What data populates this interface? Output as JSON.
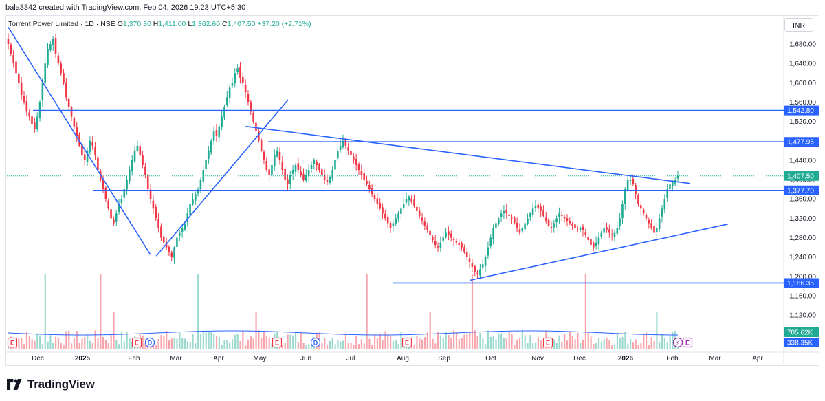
{
  "header": {
    "credit": "bala3342 created with TradingView.com, Feb 04, 2026 19:23 UTC+5:30"
  },
  "legend": {
    "symbol": "Torrent Power Limited · 1D · NSE",
    "open_label": "O",
    "open": "1,370.30",
    "high_label": "H",
    "high": "1,411.00",
    "low_label": "L",
    "low": "1,362.60",
    "close_label": "C",
    "close": "1,407.50",
    "change": "+37.20 (+2.71%)"
  },
  "currency": "INR",
  "footer": {
    "brand": "TradingView"
  },
  "colors": {
    "up": "#22ab94",
    "down": "#f23645",
    "line": "#2962ff",
    "tag_bg": "#2962ff",
    "current_tag": "#22ab94",
    "volume_ma": "#2962ff",
    "earnings": "#f23645",
    "dividend": "#2962ff"
  },
  "chart_data": {
    "type": "candlestick",
    "ylim": [
      1140,
      1720
    ],
    "y_ticks": [
      "1,680.00",
      "1,640.00",
      "1,600.00",
      "1,560.00",
      "1,520.00",
      "1,480.00",
      "1,440.00",
      "1,400.00",
      "1,360.00",
      "1,320.00",
      "1,280.00",
      "1,240.00",
      "1,200.00",
      "1,160.00",
      "1,120.00"
    ],
    "x_ticks": [
      "Dec",
      "2025",
      "Feb",
      "Mar",
      "Apr",
      "May",
      "Jun",
      "Jul",
      "Aug",
      "Sep",
      "Oct",
      "Nov",
      "Dec",
      "2026",
      "Feb",
      "Mar",
      "Apr"
    ],
    "horizontal_levels": [
      1542.8,
      1477.95,
      1377.7,
      1186.35
    ],
    "level_labels": [
      "1,542.80",
      "1,477.95",
      "1,377.70",
      "1,186.35"
    ],
    "current_price": 1407.5,
    "current_price_label": "1,407.50",
    "volume_labels": {
      "volume": "705.62K",
      "volume_ma": "338.35K"
    },
    "trendlines": [
      {
        "name": "falling-trendline",
        "from": [
          "2024-11-20",
          1715
        ],
        "to": [
          "2025-02-25",
          1245
        ]
      },
      {
        "name": "rising-trendline",
        "from": [
          "2025-03-01",
          1242
        ],
        "to": [
          "2025-05-30",
          1565
        ]
      },
      {
        "name": "descending-resistance",
        "from": [
          "2025-05-01",
          1510
        ],
        "to": [
          "2026-02-28",
          1392
        ]
      },
      {
        "name": "ascending-support",
        "from": [
          "2025-10-01",
          1192
        ],
        "to": [
          "2026-03-26",
          1308
        ]
      }
    ],
    "closes": [
      1680,
      1660,
      1640,
      1620,
      1600,
      1575,
      1560,
      1540,
      1530,
      1515,
      1505,
      1530,
      1560,
      1600,
      1640,
      1670,
      1680,
      1690,
      1660,
      1640,
      1620,
      1600,
      1570,
      1550,
      1530,
      1510,
      1490,
      1470,
      1450,
      1440,
      1460,
      1480,
      1470,
      1450,
      1420,
      1400,
      1380,
      1360,
      1340,
      1320,
      1310,
      1330,
      1350,
      1360,
      1380,
      1400,
      1420,
      1440,
      1460,
      1470,
      1450,
      1430,
      1410,
      1380,
      1360,
      1340,
      1320,
      1300,
      1280,
      1270,
      1260,
      1250,
      1240,
      1260,
      1280,
      1290,
      1300,
      1310,
      1330,
      1350,
      1360,
      1370,
      1380,
      1400,
      1420,
      1440,
      1460,
      1480,
      1500,
      1490,
      1510,
      1530,
      1550,
      1570,
      1590,
      1600,
      1620,
      1630,
      1610,
      1600,
      1580,
      1560,
      1540,
      1520,
      1500,
      1480,
      1460,
      1440,
      1420,
      1410,
      1430,
      1450,
      1460,
      1440,
      1420,
      1400,
      1390,
      1410,
      1420,
      1430,
      1420,
      1410,
      1400,
      1410,
      1420,
      1430,
      1440,
      1430,
      1420,
      1410,
      1400,
      1395,
      1405,
      1420,
      1440,
      1460,
      1470,
      1480,
      1470,
      1460,
      1450,
      1440,
      1430,
      1420,
      1410,
      1400,
      1390,
      1380,
      1370,
      1360,
      1350,
      1340,
      1330,
      1320,
      1310,
      1300,
      1310,
      1320,
      1330,
      1340,
      1350,
      1360,
      1365,
      1355,
      1345,
      1335,
      1325,
      1315,
      1305,
      1295,
      1285,
      1275,
      1265,
      1260,
      1270,
      1280,
      1290,
      1285,
      1280,
      1275,
      1270,
      1265,
      1260,
      1250,
      1240,
      1230,
      1220,
      1210,
      1205,
      1215,
      1225,
      1240,
      1260,
      1280,
      1300,
      1310,
      1320,
      1330,
      1335,
      1330,
      1325,
      1320,
      1310,
      1300,
      1290,
      1300,
      1310,
      1320,
      1330,
      1340,
      1345,
      1340,
      1335,
      1325,
      1315,
      1305,
      1300,
      1310,
      1320,
      1330,
      1325,
      1320,
      1315,
      1310,
      1305,
      1300,
      1295,
      1300,
      1295,
      1285,
      1275,
      1265,
      1260,
      1270,
      1280,
      1290,
      1300,
      1295,
      1290,
      1285,
      1290,
      1300,
      1320,
      1350,
      1380,
      1400,
      1400,
      1390,
      1370,
      1350,
      1340,
      1330,
      1320,
      1310,
      1300,
      1290,
      1300,
      1320,
      1340,
      1360,
      1380,
      1390,
      1395,
      1400,
      1407.5
    ]
  }
}
